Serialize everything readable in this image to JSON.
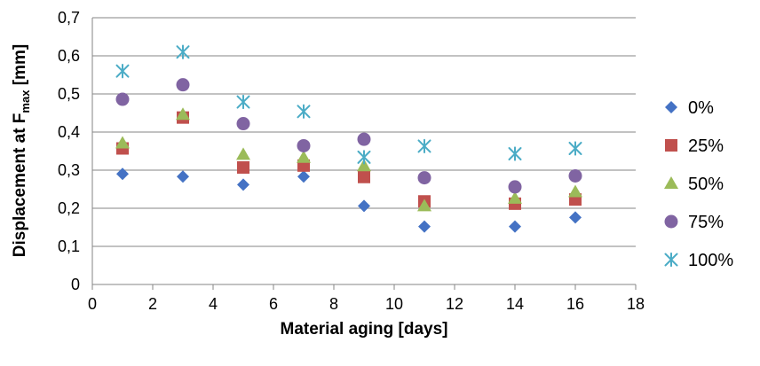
{
  "chart_data": {
    "type": "scatter",
    "title": "",
    "xlabel": "Material aging [days]",
    "ylabel_prefix": "Displacement at F",
    "ylabel_sub": "max",
    "ylabel_suffix": " [mm]",
    "xlim": [
      0,
      18
    ],
    "ylim": [
      0,
      0.7
    ],
    "x_ticks": [
      "0",
      "2",
      "4",
      "6",
      "8",
      "10",
      "12",
      "14",
      "16",
      "18"
    ],
    "y_ticks": [
      "0",
      "0,1",
      "0,2",
      "0,3",
      "0,4",
      "0,5",
      "0,6",
      "0,7"
    ],
    "grid": "horizontal",
    "legend_position": "right",
    "x": [
      1,
      3,
      5,
      7,
      9,
      11,
      14,
      16
    ],
    "series": [
      {
        "name": "0%",
        "marker": "diamond",
        "color": "#4472C4",
        "values": [
          0.29,
          0.283,
          0.262,
          0.283,
          0.206,
          0.152,
          0.152,
          0.176
        ]
      },
      {
        "name": "25%",
        "marker": "square",
        "color": "#C0504D",
        "values": [
          0.357,
          0.438,
          0.307,
          0.312,
          0.282,
          0.218,
          0.212,
          0.223
        ]
      },
      {
        "name": "50%",
        "marker": "triangle",
        "color": "#9BBB59",
        "values": [
          0.371,
          0.446,
          0.341,
          0.333,
          0.311,
          0.206,
          0.226,
          0.243
        ]
      },
      {
        "name": "75%",
        "marker": "circle",
        "color": "#8064A2",
        "values": [
          0.486,
          0.524,
          0.422,
          0.364,
          0.381,
          0.28,
          0.256,
          0.285
        ]
      },
      {
        "name": "100%",
        "marker": "star",
        "color": "#4BACC6",
        "values": [
          0.56,
          0.61,
          0.479,
          0.454,
          0.334,
          0.363,
          0.343,
          0.357
        ]
      }
    ]
  }
}
